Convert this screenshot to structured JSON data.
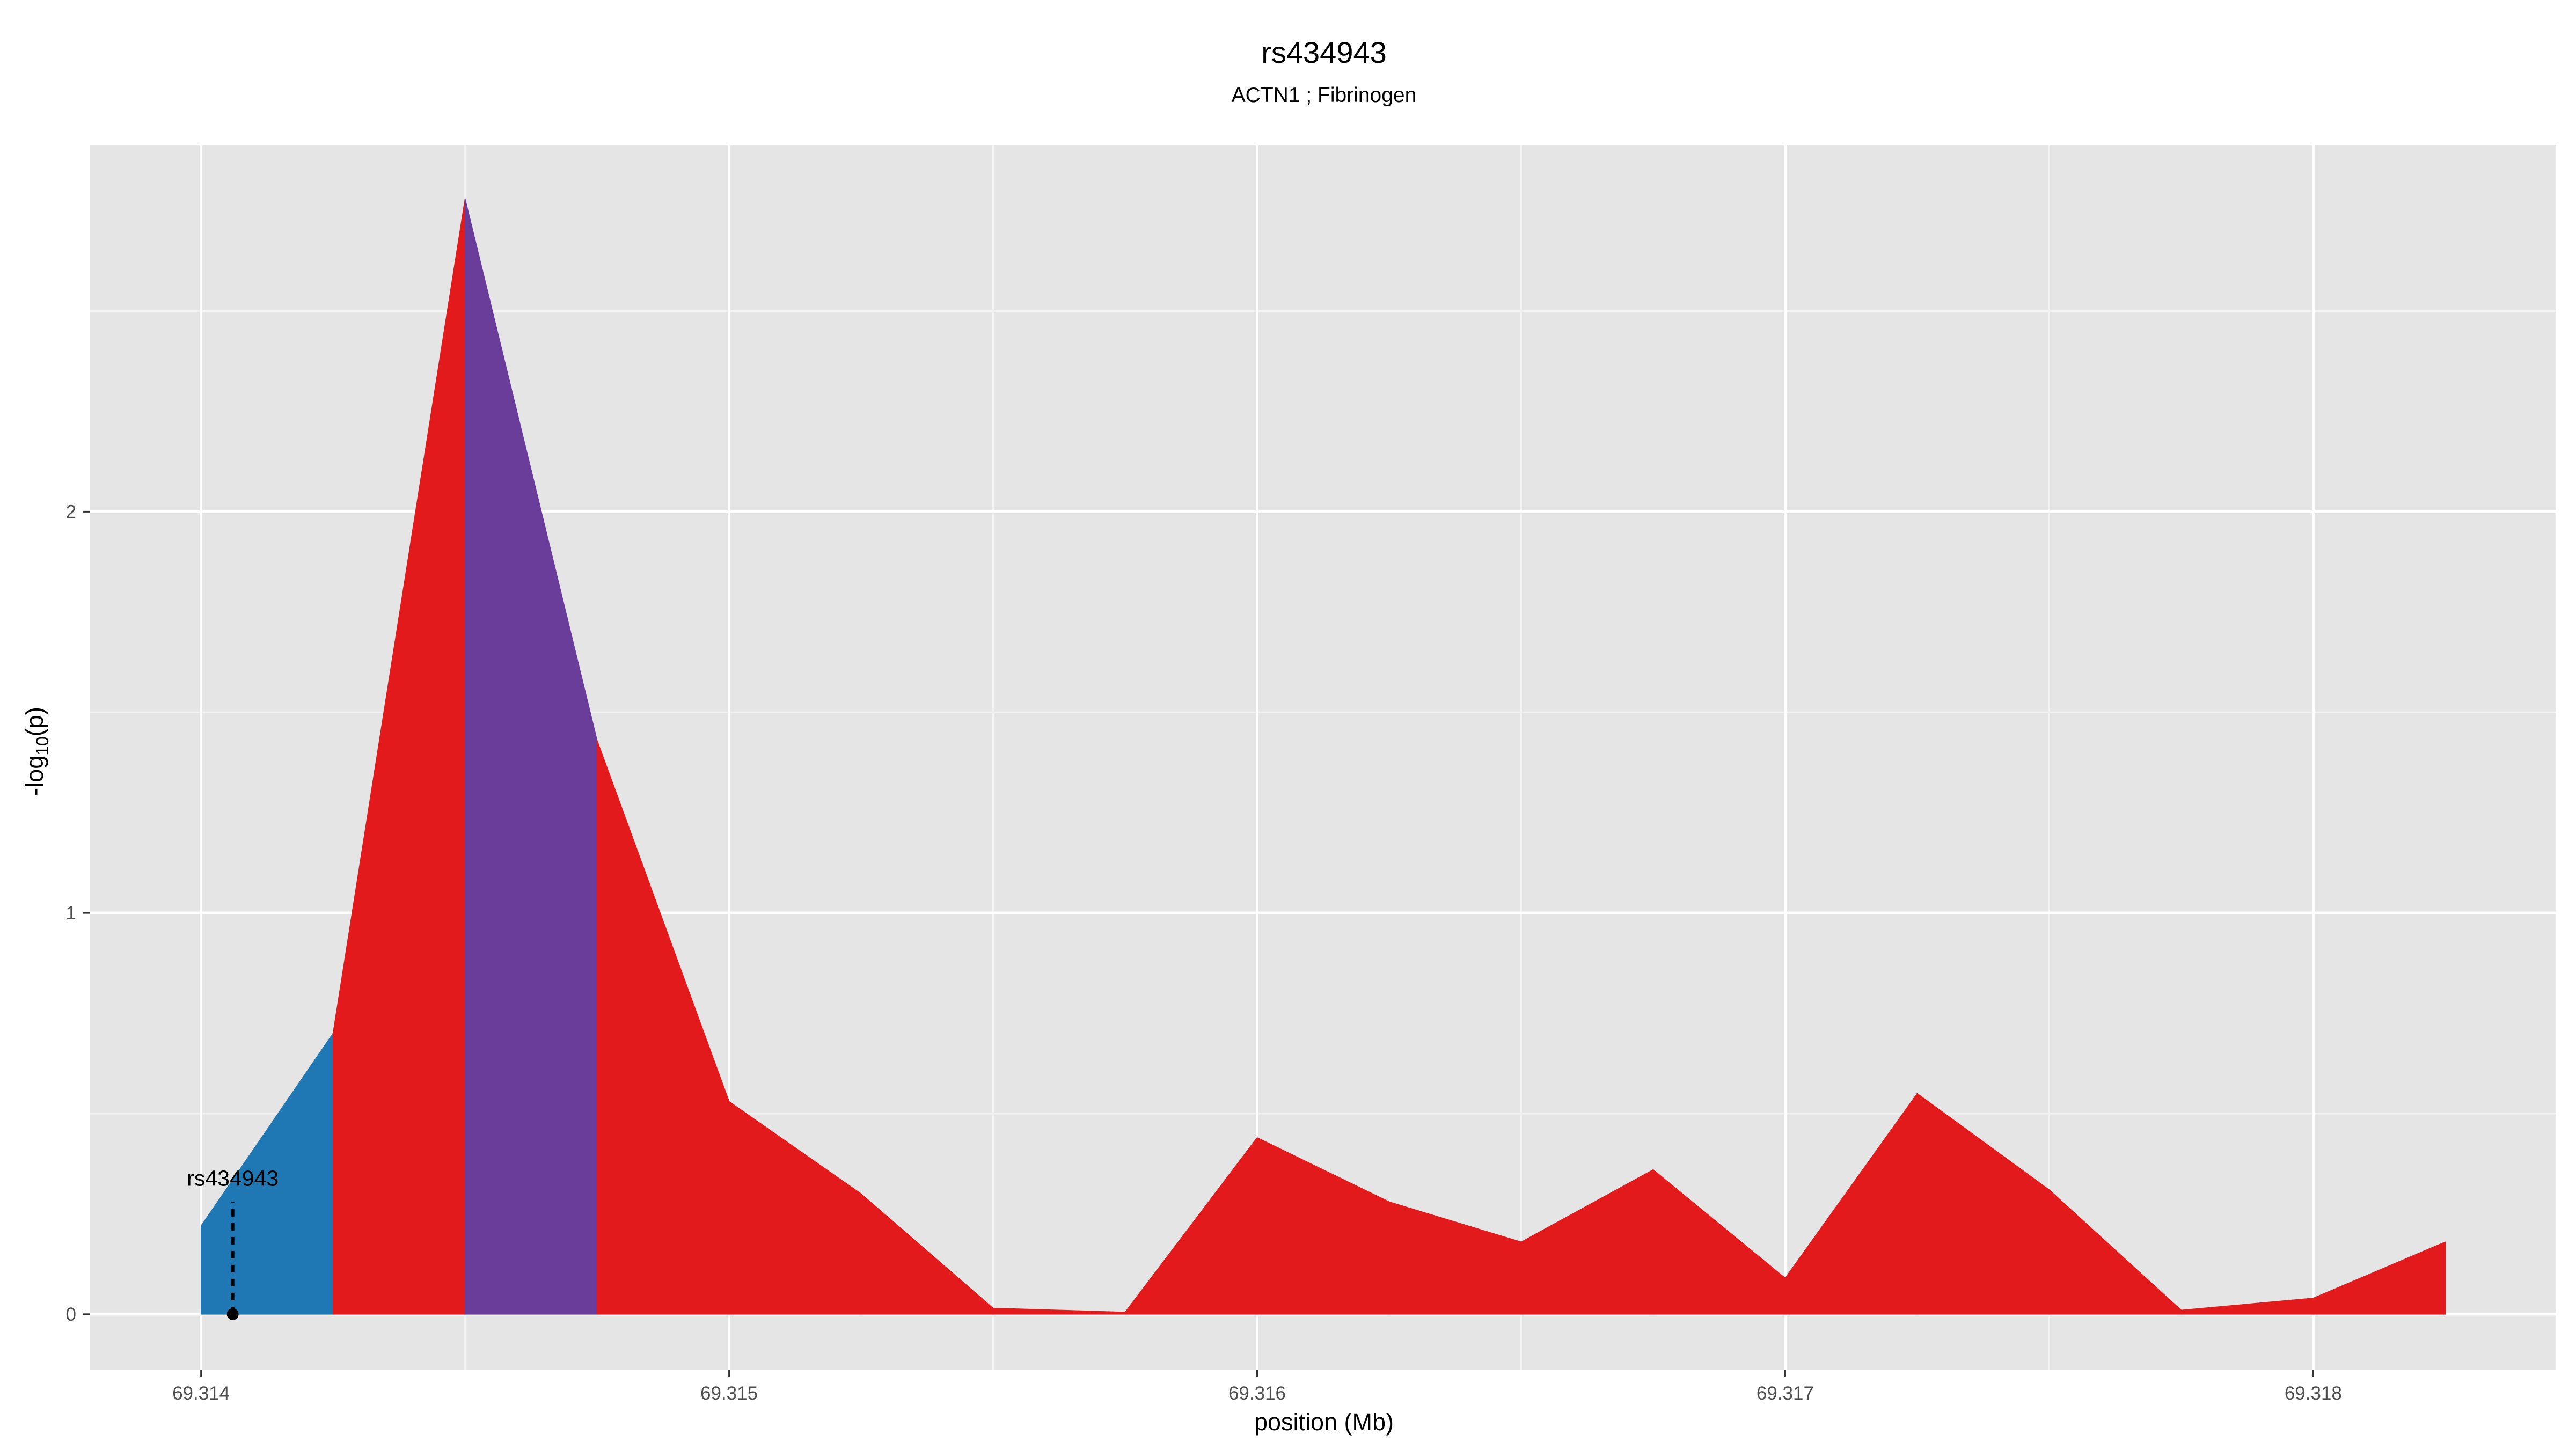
{
  "chart_data": {
    "type": "area",
    "title": "rs434943",
    "subtitle": "ACTN1 ; Fibrinogen",
    "xlabel": "position (Mb)",
    "ylabel": "-log10(p)",
    "ylabel_parts": {
      "prefix": "-log",
      "subscript": "10",
      "suffix": "(p)"
    },
    "xlim": [
      69.31379,
      69.31846
    ],
    "ylim": [
      -0.138,
      2.914
    ],
    "x_ticks": [
      69.314,
      69.315,
      69.316,
      69.317,
      69.318
    ],
    "x_tick_labels": [
      "69.314",
      "69.315",
      "69.316",
      "69.317",
      "69.318"
    ],
    "y_ticks": [
      0,
      1,
      2
    ],
    "y_tick_labels": [
      "0",
      "1",
      "2"
    ],
    "grid": true,
    "background": "#e5e5e5",
    "gridline_color": "#ffffff",
    "colors": {
      "blue": "#1f78b4",
      "purple": "#6a3d9a",
      "red": "#e31a1c"
    },
    "x": [
      69.314,
      69.31425,
      69.3145,
      69.31475,
      69.315,
      69.31525,
      69.3155,
      69.31575,
      69.316,
      69.31625,
      69.3165,
      69.31675,
      69.317,
      69.31725,
      69.3175,
      69.31775,
      69.318,
      69.31825
    ],
    "y": [
      0.22,
      0.7,
      2.78,
      1.43,
      0.53,
      0.3,
      0.015,
      0.005,
      0.44,
      0.28,
      0.18,
      0.36,
      0.09,
      0.55,
      0.31,
      0.01,
      0.04,
      0.18
    ],
    "segment_colors": [
      "blue",
      "red",
      "purple",
      "red",
      "red",
      "red",
      "red",
      "red",
      "red",
      "red",
      "red",
      "red",
      "red",
      "red",
      "red",
      "red",
      "red"
    ],
    "annotation": {
      "label": "rs434943",
      "x": 69.31406,
      "y": 0,
      "line_top": 0.28
    }
  }
}
